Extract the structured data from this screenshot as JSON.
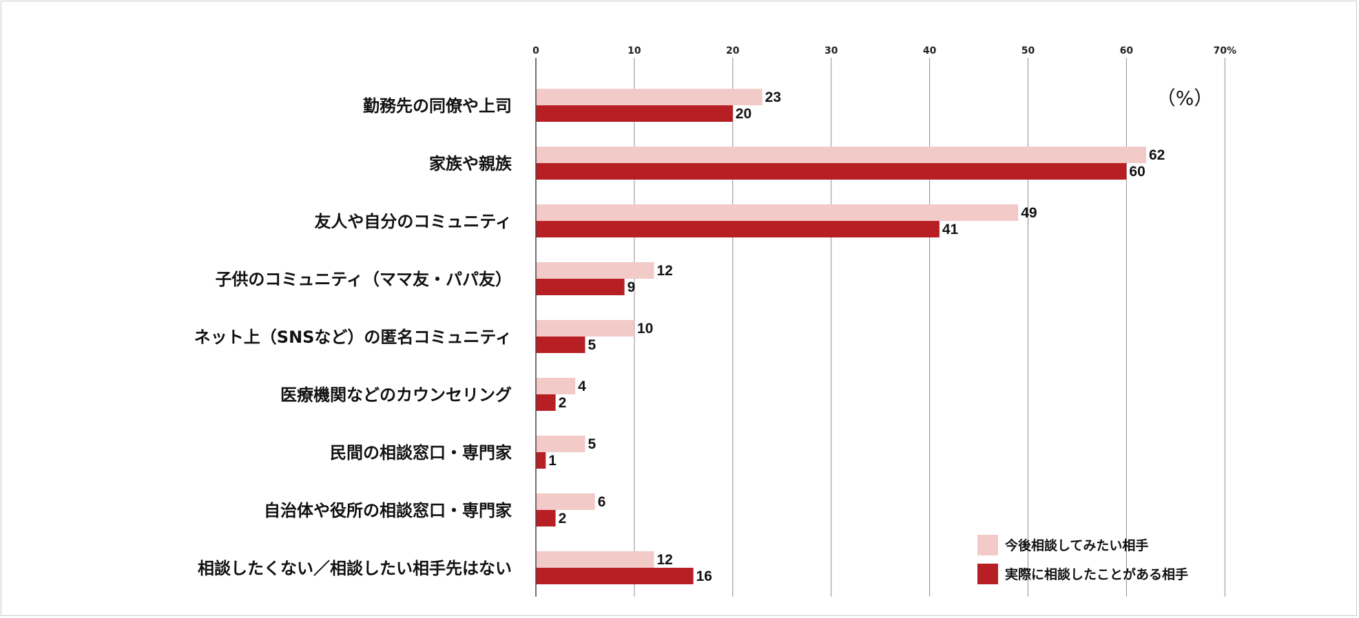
{
  "chart_data": {
    "type": "bar",
    "orientation": "horizontal",
    "unit_label": "（%）",
    "x_ticks": [
      "0",
      "10",
      "20",
      "30",
      "40",
      "50",
      "60",
      "70%"
    ],
    "xlim": [
      0,
      70
    ],
    "grid": true,
    "legend_placement": "bottom-right",
    "categories": [
      "勤務先の同僚や上司",
      "家族や親族",
      "友人や自分のコミュニティ",
      "子供のコミュニティ（ママ友・パパ友）",
      "ネット上（SNSなど）の匿名コミュニティ",
      "医療機関などのカウンセリング",
      "民間の相談窓口・専門家",
      "自治体や役所の相談窓口・専門家",
      "相談したくない／相談したい相手先はない"
    ],
    "series": [
      {
        "name": "今後相談してみたい相手",
        "color": "#f2cac7",
        "values": [
          23,
          62,
          49,
          12,
          10,
          4,
          5,
          6,
          12
        ]
      },
      {
        "name": "実際に相談したことがある相手",
        "color": "#b81f24",
        "values": [
          20,
          60,
          41,
          9,
          5,
          2,
          1,
          2,
          16
        ]
      }
    ]
  }
}
